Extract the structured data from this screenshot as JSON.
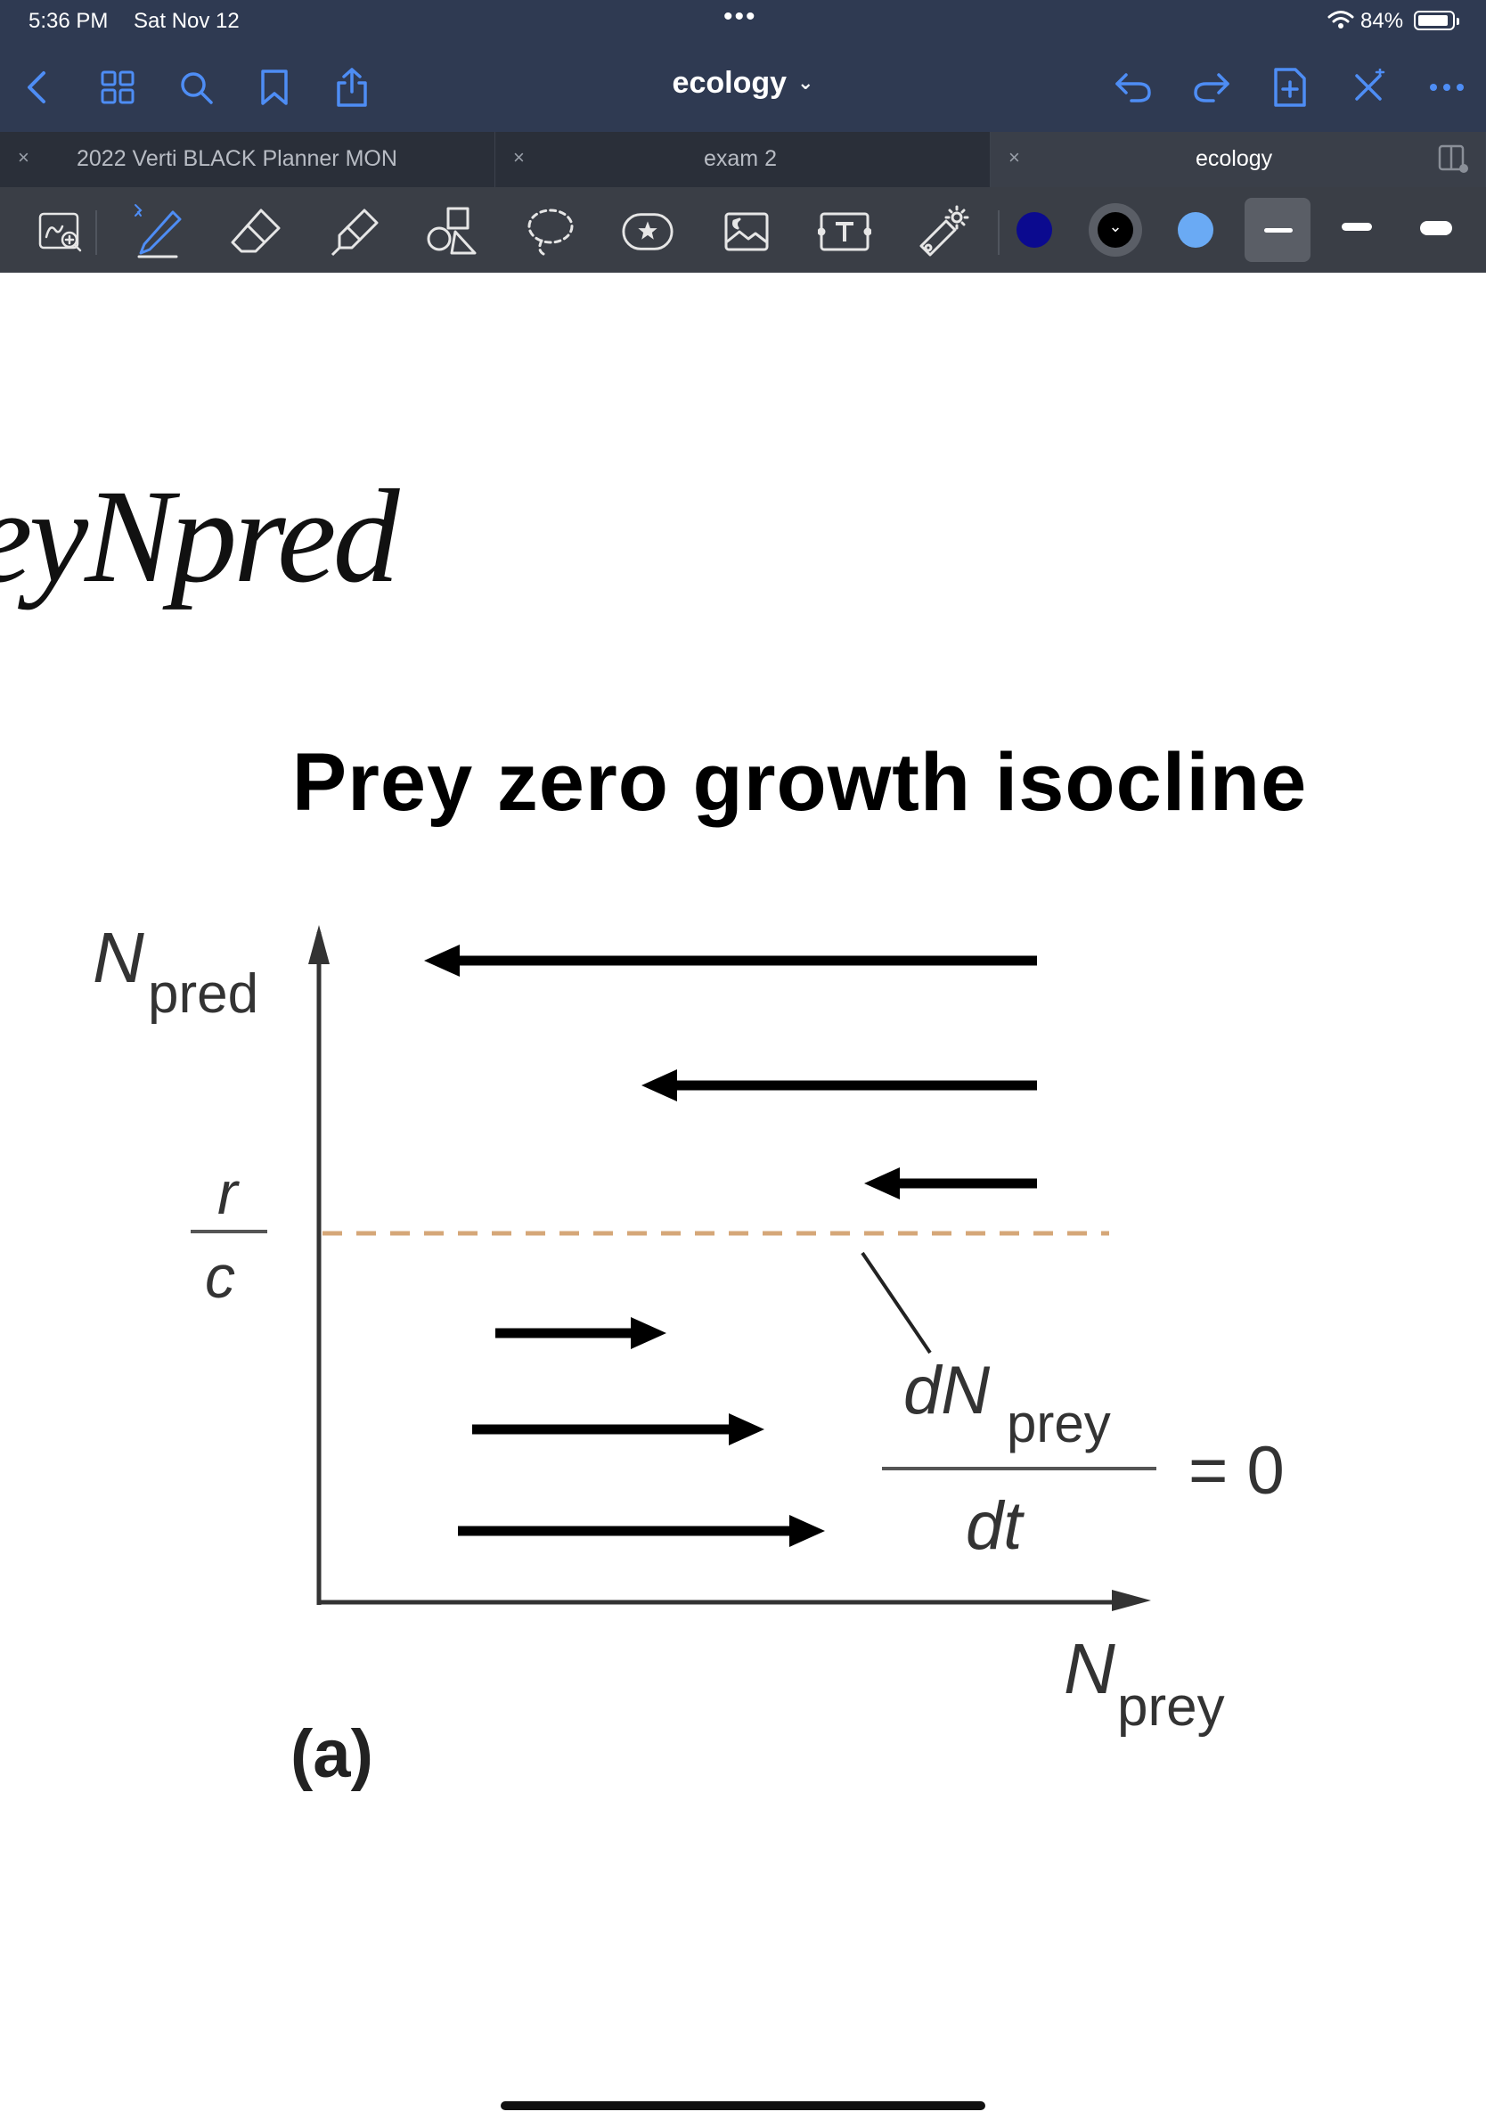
{
  "status_bar": {
    "time": "5:36 PM",
    "date": "Sat Nov 12",
    "battery": "84%"
  },
  "nav": {
    "document_title": "ecology",
    "icons": [
      "back-icon",
      "grid-icon",
      "search-icon",
      "bookmark-icon",
      "share-icon",
      "undo-icon",
      "redo-icon",
      "add-page-icon",
      "close-pen-icon",
      "more-icon"
    ]
  },
  "tabs": [
    {
      "label": "2022 Verti BLACK Planner MON",
      "active": false
    },
    {
      "label": "exam 2",
      "active": false
    },
    {
      "label": "ecology",
      "active": true
    }
  ],
  "toolbar": {
    "tools": [
      "zoom-window-icon",
      "pen-icon",
      "eraser-icon",
      "highlighter-icon",
      "shapes-icon",
      "lasso-icon",
      "sticker-icon",
      "image-icon",
      "text-icon",
      "laser-pointer-icon"
    ],
    "colors": [
      "#0b0a8f",
      "#000000",
      "#6aaaf4"
    ],
    "sizes": [
      "thin",
      "medium",
      "thick"
    ]
  },
  "page": {
    "handwriting": "eyNpred",
    "heading": "Prey zero growth isocline",
    "figure": {
      "y_axis_label": "N",
      "y_axis_sub": "pred",
      "x_axis_label": "N",
      "x_axis_sub": "prey",
      "ratio_numerator": "r",
      "ratio_denominator": "c",
      "equation_top": "dN",
      "equation_top_sub": "prey",
      "equation_bottom": "dt",
      "equation_rhs": "= 0",
      "panel_label": "(a)"
    }
  }
}
